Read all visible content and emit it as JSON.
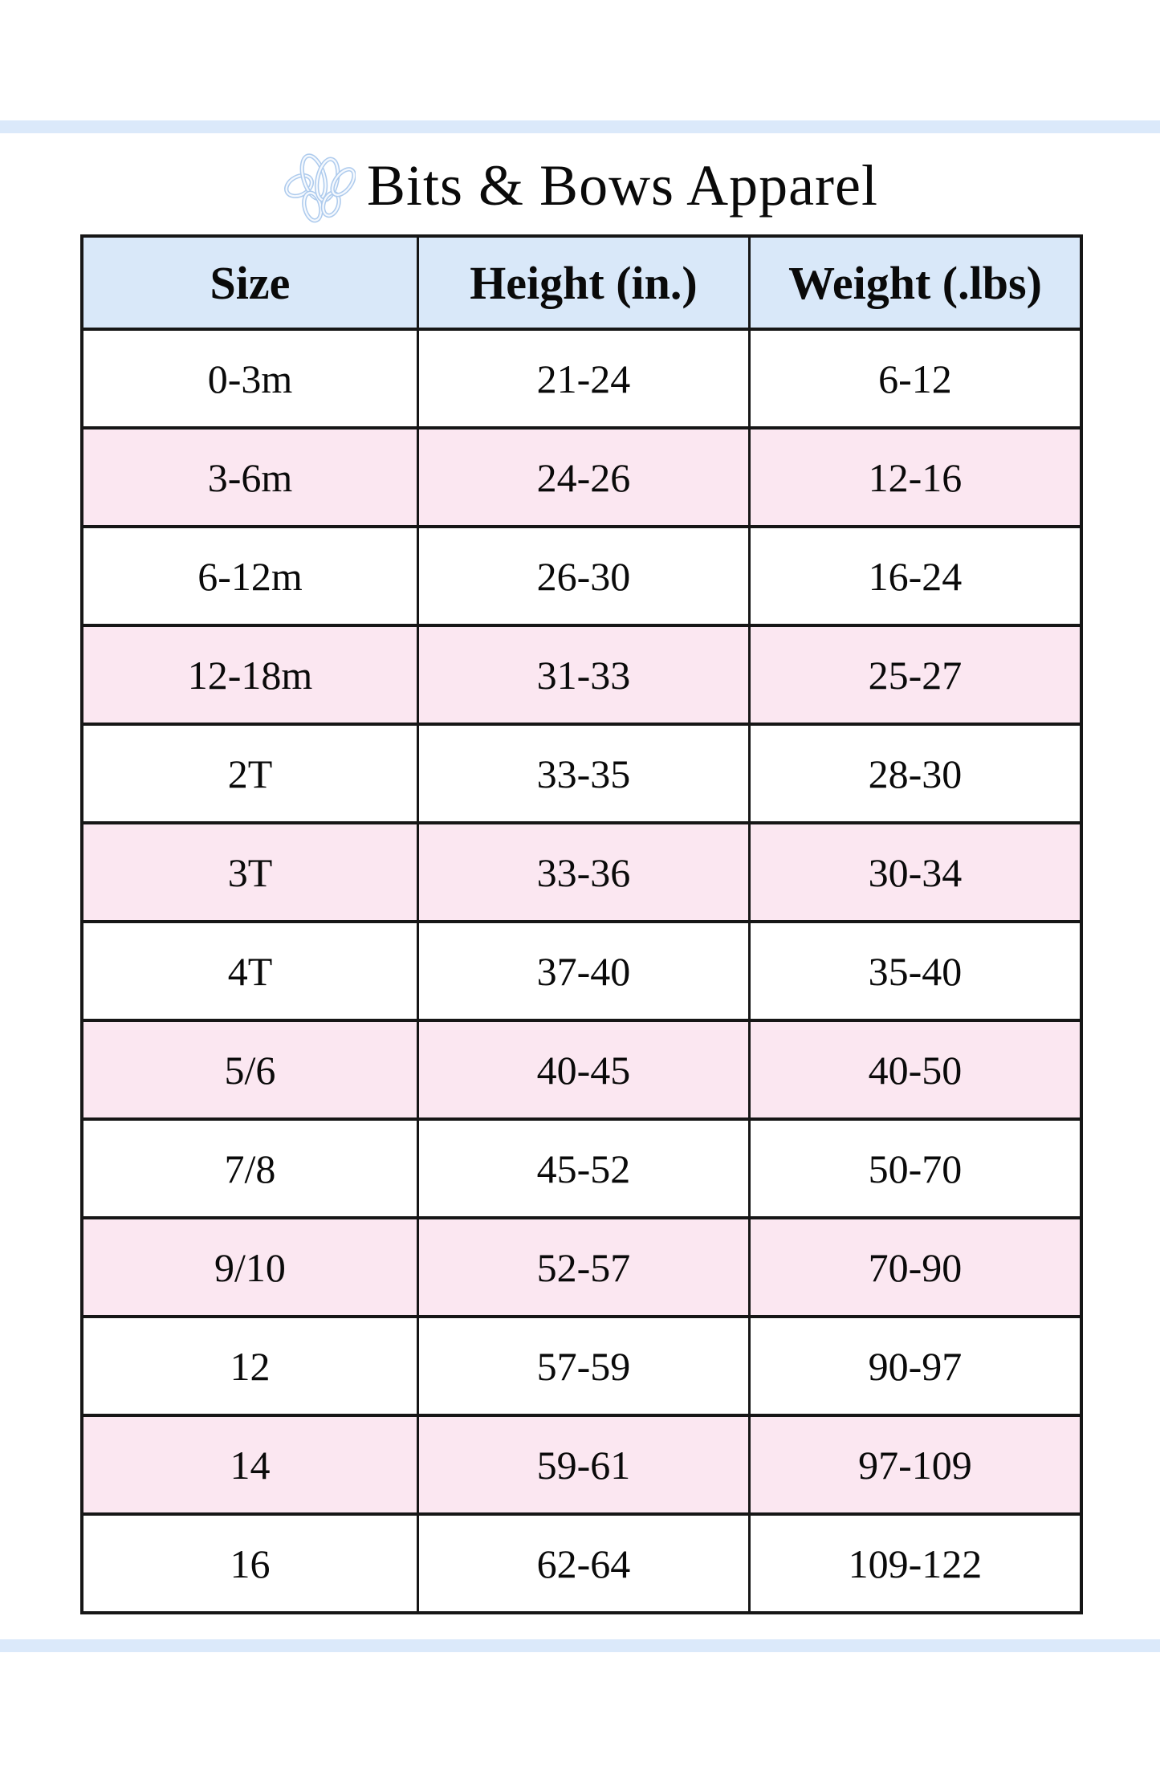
{
  "brand": {
    "name": "Bits & Bows Apparel",
    "logo": "interlocking-bows-monogram-icon"
  },
  "colors": {
    "header_bg": "#d9e8f9",
    "row_alt_pink": "#fbe7f1",
    "row_white": "#ffffff",
    "accent_band_blue": "#dbe9fa",
    "table_border": "#161616",
    "logo_blue": "#aecbed"
  },
  "size_chart": {
    "columns": [
      "Size",
      "Height (in.)",
      "Weight (.lbs)"
    ],
    "rows": [
      [
        "0-3m",
        "21-24",
        "6-12"
      ],
      [
        "3-6m",
        "24-26",
        "12-16"
      ],
      [
        "6-12m",
        "26-30",
        "16-24"
      ],
      [
        "12-18m",
        "31-33",
        "25-27"
      ],
      [
        "2T",
        "33-35",
        "28-30"
      ],
      [
        "3T",
        "33-36",
        "30-34"
      ],
      [
        "4T",
        "37-40",
        "35-40"
      ],
      [
        "5/6",
        "40-45",
        "40-50"
      ],
      [
        "7/8",
        "45-52",
        "50-70"
      ],
      [
        "9/10",
        "52-57",
        "70-90"
      ],
      [
        "12",
        "57-59",
        "90-97"
      ],
      [
        "14",
        "59-61",
        "97-109"
      ],
      [
        "16",
        "62-64",
        "109-122"
      ]
    ]
  }
}
